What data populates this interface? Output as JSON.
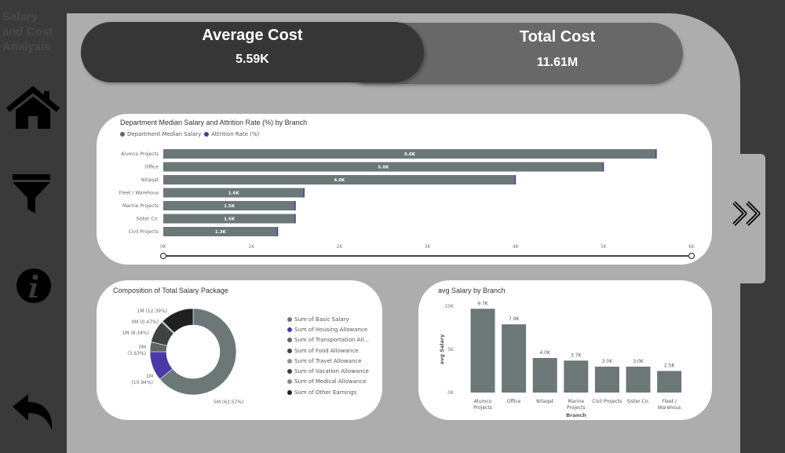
{
  "sidebar": {
    "title": "Salary and Cost Analysis",
    "icons": [
      "home-icon",
      "filter-icon",
      "info-icon",
      "back-arrow-icon"
    ]
  },
  "kpis": {
    "average_cost": {
      "label": "Average Cost",
      "value": "5.59K"
    },
    "total_cost": {
      "label": "Total Cost",
      "value": "11.61M"
    }
  },
  "nav": {
    "next_icon": "double-chevron-right-icon"
  },
  "colors": {
    "bar": "#6b7877",
    "attrition": "#4a3aa8",
    "panel": "#adadad",
    "background": "#3a3a3a"
  },
  "chart_data": [
    {
      "type": "bar",
      "orientation": "horizontal",
      "title": "Department Median Salary and Attrition Rate (%) by Branch",
      "legend": [
        "Department Median Salary",
        "Attrition Rate (%)"
      ],
      "legend_position": "top-left",
      "categories": [
        "Alumco Projects",
        "Office",
        "Nitaqat",
        "Fleet / Warehous",
        "Marine Projects",
        "Sister Co.",
        "Civil Projects"
      ],
      "values": [
        5600,
        5000,
        4000,
        1600,
        1500,
        1500,
        1300
      ],
      "data_labels": [
        "5.6K",
        "5.0K",
        "4.0K",
        "1.6K",
        "1.5K",
        "1.5K",
        "1.3K"
      ],
      "xticks": [
        "0K",
        "1K",
        "2K",
        "3K",
        "4K",
        "5K",
        "6K"
      ],
      "xlim": [
        0,
        6000
      ],
      "grid": false
    },
    {
      "type": "pie",
      "donut": true,
      "title": "Composition of Total Salary Package",
      "slices": [
        {
          "name": "Sum of Basic Salary",
          "percent": 63.57,
          "label": "5M (63.57%)",
          "color": "#6b7877"
        },
        {
          "name": "Sum of Housing Allowance",
          "percent": 10.94,
          "label": "1M (10.94%)",
          "color": "#4a3aa8"
        },
        {
          "name": "Sum of Transportation All...",
          "percent": 3.63,
          "label": "0M (3.63%)",
          "color": "#5f6563"
        },
        {
          "name": "Sum of Food Allowance",
          "percent": 8.34,
          "label": "1M (8.34%)",
          "color": "#3e4443"
        },
        {
          "name": "Sum of Travel Allowance",
          "percent": 0.47,
          "label": "0M (0.47%)",
          "color": "#8a9695"
        },
        {
          "name": "Sum of Vacation Allowance",
          "percent": null,
          "label": "",
          "color": "#4a3838"
        },
        {
          "name": "Sum of Medical Allowance",
          "percent": null,
          "label": "",
          "color": "#8c8c8c"
        },
        {
          "name": "Sum of Other Earnings",
          "percent": 12.39,
          "label": "1M (12.39%)",
          "color": "#1f2120"
        }
      ],
      "legend_position": "right"
    },
    {
      "type": "bar",
      "title": "avg Salary by Branch",
      "xlabel": "Branch",
      "ylabel": "avg Salary",
      "categories": [
        "Alumco Projects",
        "Office",
        "Nitaqat",
        "Marine Projects",
        "Civil Projects",
        "Sister Co.",
        "Fleet / Warehous"
      ],
      "values": [
        9700,
        7900,
        4000,
        3700,
        3000,
        3000,
        2500
      ],
      "data_labels": [
        "9.7K",
        "7.9K",
        "4.0K",
        "3.7K",
        "3.0K",
        "3.0K",
        "2.5K"
      ],
      "yticks": [
        "0K",
        "5K",
        "10K"
      ],
      "ylim": [
        0,
        10000
      ],
      "grid": false
    }
  ]
}
